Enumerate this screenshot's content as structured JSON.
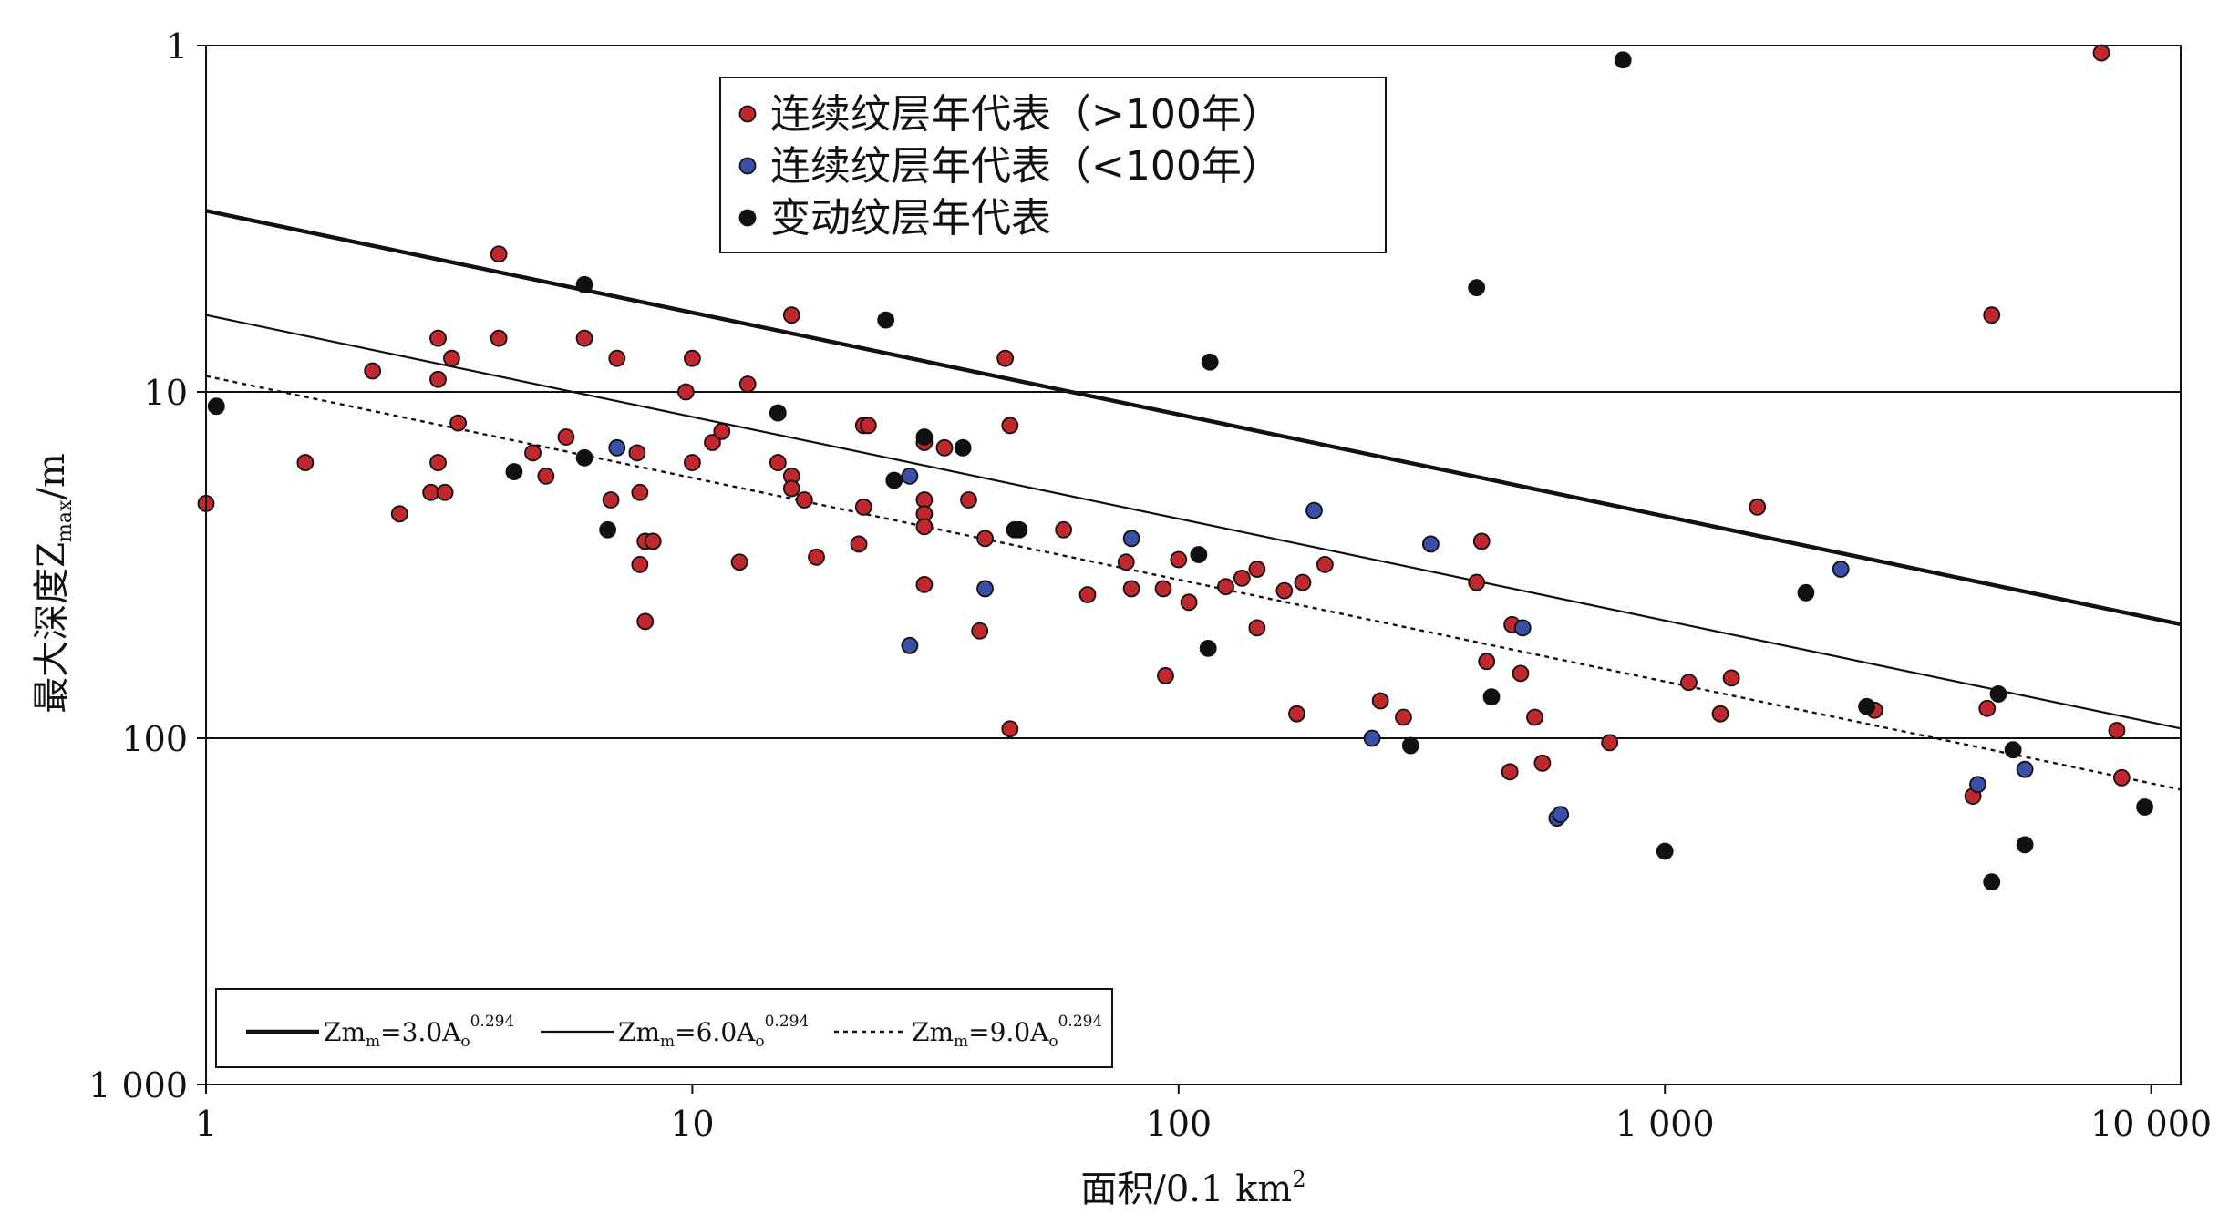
{
  "chart_data": {
    "type": "scatter",
    "x_scale": "log",
    "y_scale": "log",
    "y_inverted": true,
    "xlim": [
      1,
      11500
    ],
    "ylim": [
      1,
      1000
    ],
    "xlabel": "面积/0.1 km",
    "xlabel_sup": "2",
    "ylabel": "最大深度Z",
    "ylabel_sub": "max",
    "ylabel_unit": "/m",
    "x_ticks": [
      {
        "value": 1,
        "label": "1"
      },
      {
        "value": 10,
        "label": "10"
      },
      {
        "value": 100,
        "label": "100"
      },
      {
        "value": 1000,
        "label": "1 000"
      },
      {
        "value": 10000,
        "label": "10 000"
      }
    ],
    "y_ticks": [
      {
        "value": 1,
        "label": "1"
      },
      {
        "value": 10,
        "label": "10"
      },
      {
        "value": 100,
        "label": "100"
      },
      {
        "value": 1000,
        "label": "1 000"
      }
    ],
    "grid_y": [
      10,
      100
    ],
    "lines": [
      {
        "name": "Zm",
        "sub": "m",
        "eq": "=3.0A",
        "eq_sub": "o",
        "exp": "0.294",
        "coef": 3.0,
        "power": 0.294,
        "style": "thick",
        "color": "#111111"
      },
      {
        "name": "Zm",
        "sub": "m",
        "eq": "=6.0A",
        "eq_sub": "o",
        "exp": "0.294",
        "coef": 6.0,
        "power": 0.294,
        "style": "thin",
        "color": "#111111"
      },
      {
        "name": "Zm",
        "sub": "m",
        "eq": "=9.0A",
        "eq_sub": "o",
        "exp": "0.294",
        "coef": 9.0,
        "power": 0.294,
        "style": "dotted",
        "color": "#111111"
      }
    ],
    "legend_position": "top-center",
    "lines_legend_position": "bottom-left",
    "series": [
      {
        "name": "连续纹层年代表（>100年）",
        "color": "#c0282d",
        "points": [
          [
            1,
            21
          ],
          [
            1.05,
            11
          ],
          [
            1.6,
            16
          ],
          [
            2.2,
            8.7
          ],
          [
            2.5,
            22.5
          ],
          [
            2.9,
            19.5
          ],
          [
            3,
            7
          ],
          [
            3,
            9.2
          ],
          [
            3,
            16
          ],
          [
            3.1,
            19.5
          ],
          [
            3.2,
            8
          ],
          [
            3.3,
            12.3
          ],
          [
            4,
            4
          ],
          [
            4,
            7
          ],
          [
            4.7,
            15
          ],
          [
            5,
            17.5
          ],
          [
            5.5,
            13.5
          ],
          [
            6,
            7
          ],
          [
            6.8,
            20.5
          ],
          [
            7,
            8
          ],
          [
            7.7,
            15
          ],
          [
            7.8,
            19.5
          ],
          [
            7.8,
            31.5
          ],
          [
            8,
            27
          ],
          [
            8,
            46
          ],
          [
            8.3,
            27
          ],
          [
            9.7,
            10
          ],
          [
            10,
            8
          ],
          [
            10,
            16
          ],
          [
            11,
            14
          ],
          [
            11.5,
            13
          ],
          [
            12.5,
            31
          ],
          [
            13,
            9.5
          ],
          [
            15,
            16
          ],
          [
            16,
            6
          ],
          [
            16,
            17.5
          ],
          [
            16,
            19
          ],
          [
            17,
            20.5
          ],
          [
            18,
            30
          ],
          [
            22,
            27.5
          ],
          [
            22.5,
            21.5
          ],
          [
            22.5,
            12.5
          ],
          [
            23,
            12.5
          ],
          [
            30,
            14
          ],
          [
            30,
            20.5
          ],
          [
            30,
            22.5
          ],
          [
            30,
            24.5
          ],
          [
            30,
            36
          ],
          [
            33,
            14.5
          ],
          [
            37,
            20.5
          ],
          [
            39,
            49
          ],
          [
            40,
            26.5
          ],
          [
            44,
            8
          ],
          [
            45,
            12.5
          ],
          [
            45,
            94
          ],
          [
            58,
            25
          ],
          [
            65,
            38.5
          ],
          [
            78,
            31
          ],
          [
            80,
            37
          ],
          [
            93,
            37
          ],
          [
            94,
            66
          ],
          [
            100,
            30.5
          ],
          [
            105,
            40.5
          ],
          [
            125,
            36.5
          ],
          [
            135,
            34.5
          ],
          [
            145,
            48
          ],
          [
            145,
            32.5
          ],
          [
            165,
            37.5
          ],
          [
            175,
            85
          ],
          [
            180,
            35.5
          ],
          [
            200,
            31.5
          ],
          [
            260,
            78
          ],
          [
            290,
            87
          ],
          [
            410,
            35.5
          ],
          [
            420,
            27
          ],
          [
            430,
            60
          ],
          [
            480,
            125
          ],
          [
            485,
            47
          ],
          [
            505,
            65
          ],
          [
            540,
            87
          ],
          [
            560,
            118
          ],
          [
            770,
            103
          ],
          [
            1120,
            69
          ],
          [
            1300,
            85
          ],
          [
            1370,
            67
          ],
          [
            1550,
            21.5
          ],
          [
            2700,
            83
          ],
          [
            4300,
            147
          ],
          [
            4600,
            82
          ],
          [
            4700,
            6
          ],
          [
            7900,
            1.05
          ],
          [
            8500,
            95
          ],
          [
            8700,
            130
          ]
        ]
      },
      {
        "name": "连续纹层年代表（<100年）",
        "color": "#3a4fa8",
        "points": [
          [
            7,
            14.5
          ],
          [
            28,
            17.5
          ],
          [
            28,
            54
          ],
          [
            40,
            37
          ],
          [
            80,
            26.5
          ],
          [
            190,
            22
          ],
          [
            250,
            100
          ],
          [
            330,
            27.5
          ],
          [
            510,
            48
          ],
          [
            600,
            170
          ],
          [
            610,
            166
          ],
          [
            2300,
            32.5
          ],
          [
            4400,
            136
          ],
          [
            5500,
            123
          ]
        ]
      },
      {
        "name": "变动纹层年代表",
        "color": "#111111",
        "points": [
          [
            1.05,
            11
          ],
          [
            4.3,
            17
          ],
          [
            6,
            4.9
          ],
          [
            6,
            15.5
          ],
          [
            6.7,
            25
          ],
          [
            15,
            11.5
          ],
          [
            25,
            6.2
          ],
          [
            26,
            18
          ],
          [
            30,
            13.5
          ],
          [
            36,
            14.5
          ],
          [
            46,
            25
          ],
          [
            47,
            25
          ],
          [
            110,
            29.5
          ],
          [
            115,
            55
          ],
          [
            116,
            8.2
          ],
          [
            300,
            105
          ],
          [
            410,
            5
          ],
          [
            440,
            76
          ],
          [
            820,
            1.1
          ],
          [
            1000,
            212
          ],
          [
            1950,
            38
          ],
          [
            2600,
            81
          ],
          [
            4700,
            260
          ],
          [
            4850,
            74.5
          ],
          [
            5200,
            108
          ],
          [
            5500,
            203
          ],
          [
            9700,
            158
          ]
        ]
      }
    ]
  }
}
